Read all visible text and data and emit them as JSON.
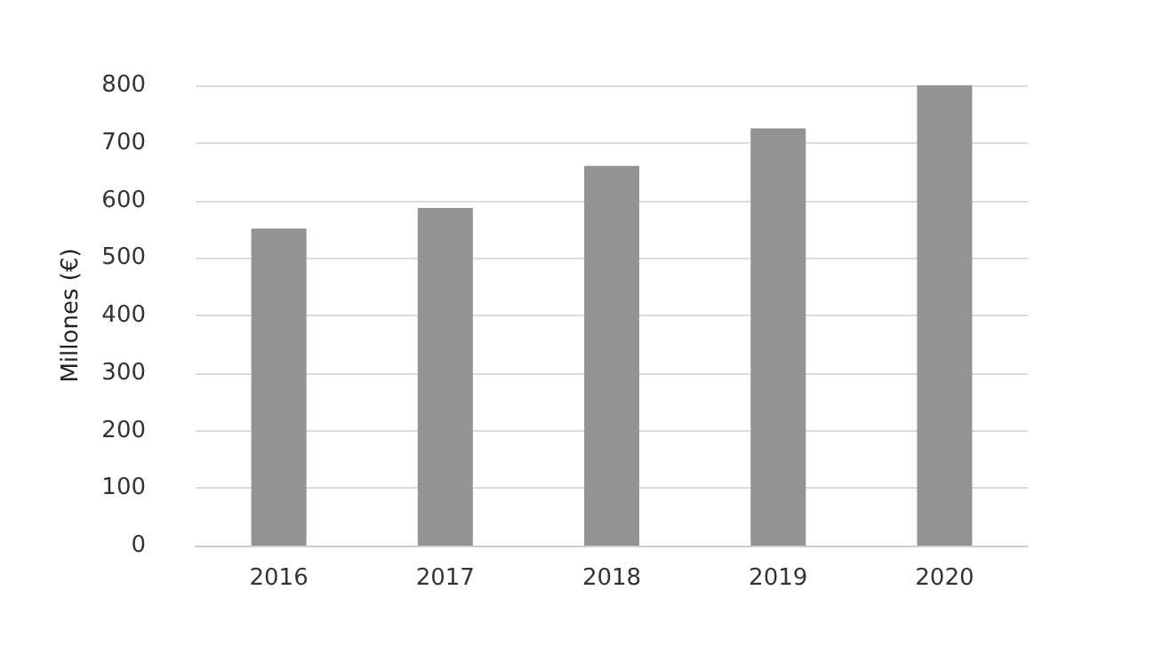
{
  "chart_data": {
    "type": "bar",
    "ylabel": "Millones (€)",
    "categories": [
      "2016",
      "2017",
      "2018",
      "2019",
      "2020"
    ],
    "values": [
      551,
      587,
      660,
      725,
      800
    ],
    "color": "#939396",
    "ylim": [
      0,
      800
    ],
    "yticks": [
      0,
      100,
      200,
      300,
      400,
      500,
      600,
      700,
      800
    ],
    "grid": "y"
  }
}
